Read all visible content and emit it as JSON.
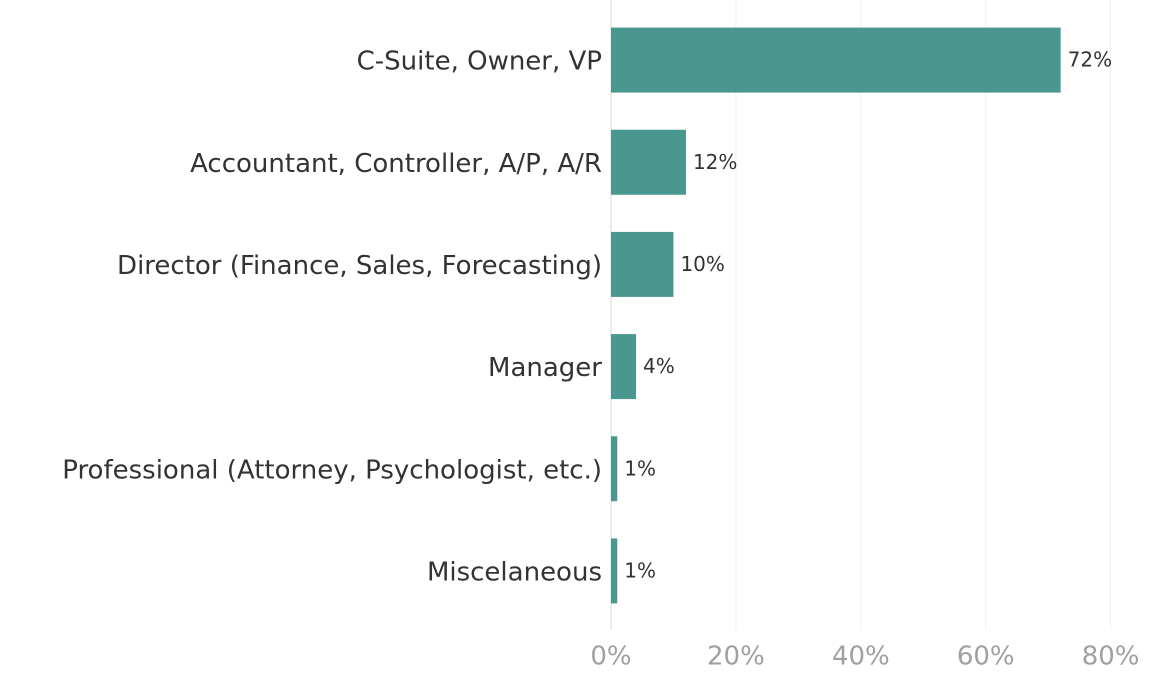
{
  "chart_data": {
    "type": "bar",
    "orientation": "horizontal",
    "categories": [
      "C-Suite, Owner, VP",
      "Accountant, Controller, A/P, A/R",
      "Director (Finance, Sales, Forecasting)",
      "Manager",
      "Professional (Attorney, Psychologist, etc.)",
      "Miscelaneous"
    ],
    "values": [
      72,
      12,
      10,
      4,
      1,
      1
    ],
    "value_labels": [
      "72%",
      "12%",
      "10%",
      "4%",
      "1%",
      "1%"
    ],
    "color": "#4a9790",
    "xlim": [
      0,
      81.5
    ],
    "xticks": [
      {
        "value": 0,
        "label": "0%"
      },
      {
        "value": 20,
        "label": "20%"
      },
      {
        "value": 40,
        "label": "40%"
      },
      {
        "value": 60,
        "label": "60%"
      },
      {
        "value": 80,
        "label": "80%"
      }
    ],
    "grid": true
  }
}
